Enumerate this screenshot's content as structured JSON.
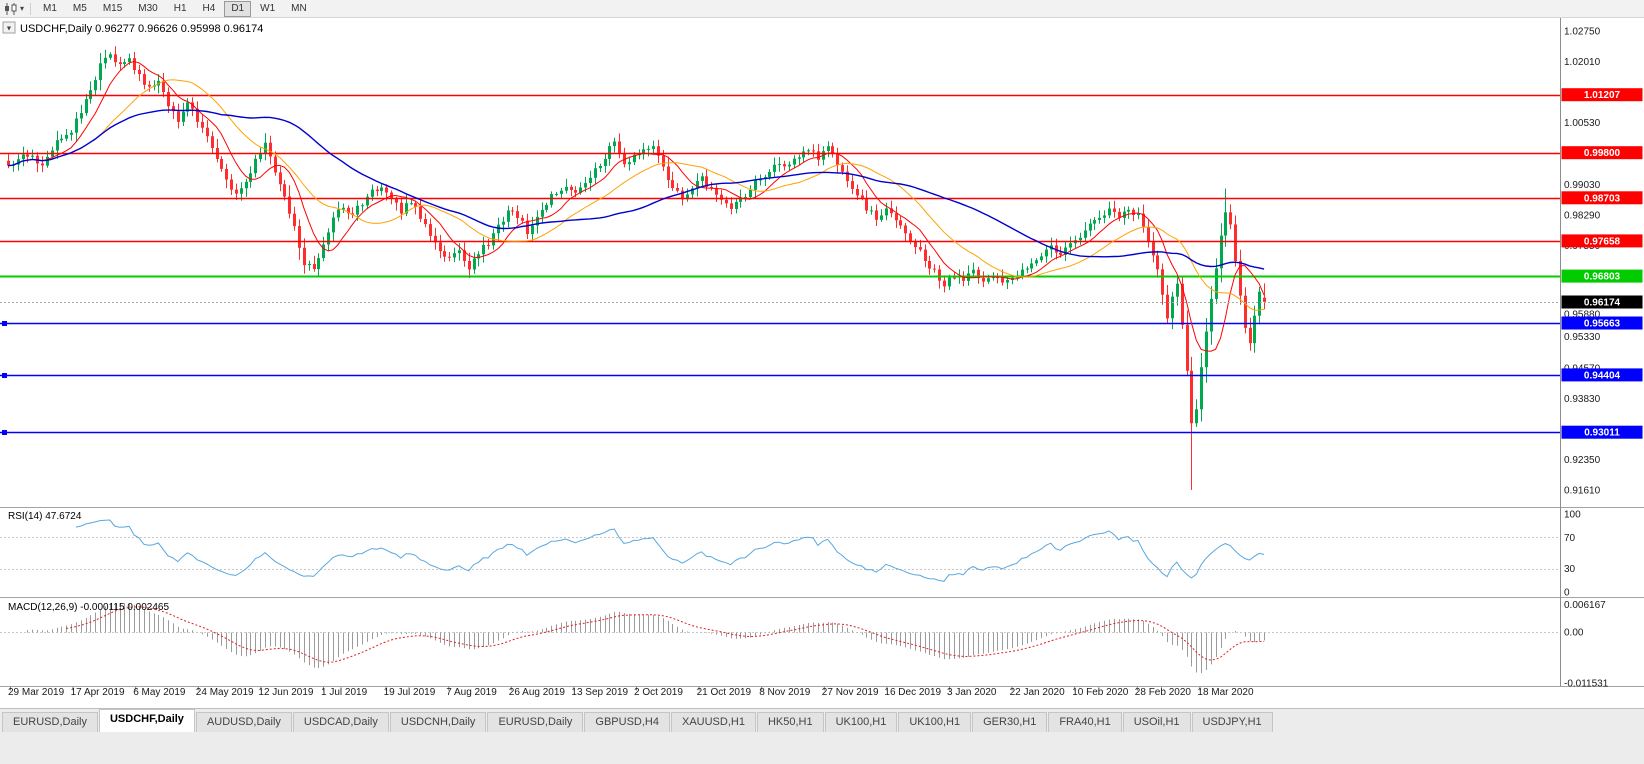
{
  "toolbar": {
    "timeframes": [
      "M1",
      "M5",
      "M15",
      "M30",
      "H1",
      "H4",
      "D1",
      "W1",
      "MN"
    ],
    "active_timeframe": "D1",
    "chart_icon": "candlestick-chart-icon"
  },
  "chart": {
    "header": {
      "symbol": "USDCHF,Daily",
      "open": "0.96277",
      "high": "0.96626",
      "low": "0.95998",
      "close": "0.96174"
    },
    "date_labels": [
      "29 Mar 2019",
      "17 Apr 2019",
      "6 May 2019",
      "24 May 2019",
      "12 Jun 2019",
      "1 Jul 2019",
      "19 Jul 2019",
      "7 Aug 2019",
      "26 Aug 2019",
      "13 Sep 2019",
      "2 Oct 2019",
      "21 Oct 2019",
      "8 Nov 2019",
      "27 Nov 2019",
      "16 Dec 2019",
      "3 Jan 2020",
      "22 Jan 2020",
      "10 Feb 2020",
      "28 Feb 2020",
      "18 Mar 2020"
    ]
  },
  "rsi_panel": {
    "label": "RSI(14)",
    "value": "47.6724",
    "axis_ticks": [
      100,
      70,
      30,
      0
    ],
    "level_lines": [
      70,
      30
    ],
    "line_color": "#58a7e0"
  },
  "macd_panel": {
    "label": "MACD(12,26,9)",
    "main_value": "-0.000115",
    "signal_value": "0.002465",
    "axis_ticks": [
      {
        "label": "0.006167",
        "value": 0.006167
      },
      {
        "label": "0.00",
        "value": 0
      },
      {
        "label": "-0.011531",
        "value": -0.011531
      }
    ],
    "histogram_color": "#9b9b9b",
    "signal_color": "#e02020"
  },
  "tabs": {
    "active_index": 1,
    "list": [
      "EURUSD,Daily",
      "USDCHF,Daily",
      "AUDUSD,Daily",
      "USDCAD,Daily",
      "USDCNH,Daily",
      "EURUSD,Daily",
      "GBPUSD,H4",
      "XAUUSD,H1",
      "HK50,H1",
      "UK100,H1",
      "UK100,H1",
      "GER30,H1",
      "FRA40,H1",
      "USOil,H1",
      "USDJPY,H1"
    ]
  },
  "chart_data": {
    "type": "candlestick",
    "symbol": "USDCHF",
    "timeframe": "Daily",
    "candle_count": 260,
    "colors": {
      "up": "#00a94f",
      "down": "#fe2e2e"
    },
    "price_range": {
      "max": 1.0307,
      "min": 0.9122
    },
    "price_axis_ticks": [
      1.0275,
      1.0201,
      1.0053,
      0.9903,
      0.9829,
      0.9755,
      0.9588,
      0.9533,
      0.9457,
      0.9383,
      0.9235,
      0.9161
    ],
    "horizontal_lines": [
      {
        "price": 1.01207,
        "color": "#ff0000",
        "width": 1.5,
        "badge": "1.01207"
      },
      {
        "price": 0.998,
        "color": "#ff0000",
        "width": 1.5,
        "badge": "0.99800"
      },
      {
        "price": 0.98703,
        "color": "#ff0000",
        "width": 1.5,
        "badge": "0.98703"
      },
      {
        "price": 0.97658,
        "color": "#ff0000",
        "width": 1.5,
        "badge": "0.97658"
      },
      {
        "price": 0.96803,
        "color": "#00cc00",
        "width": 2,
        "badge": "0.96803"
      },
      {
        "price": 0.95663,
        "color": "#0000ff",
        "width": 1.5,
        "badge": "0.95663",
        "marker": true
      },
      {
        "price": 0.94404,
        "color": "#0000ff",
        "width": 1.5,
        "badge": "0.94404",
        "marker": true
      },
      {
        "price": 0.93011,
        "color": "#0000ff",
        "width": 1.5,
        "badge": "0.93011",
        "marker": true
      }
    ],
    "current_price": {
      "value": 0.96174,
      "badge": "0.96174",
      "color": "#000000"
    },
    "moving_averages": [
      {
        "type": "SMA",
        "period": 8,
        "color": "#ff0000",
        "width": 1
      },
      {
        "type": "SMA",
        "period": 20,
        "color": "#ffa200",
        "width": 1
      },
      {
        "type": "SMA",
        "period": 45,
        "color": "#0000d0",
        "width": 1.4
      }
    ],
    "last_candle": {
      "open": 0.96277,
      "high": 0.96626,
      "low": 0.95998,
      "close": 0.96174
    },
    "wick_overrides": [
      {
        "i": 244,
        "l": 0.9161
      },
      {
        "i": 251,
        "h": 0.9893
      }
    ],
    "close_waypoints": [
      [
        0,
        0.9945
      ],
      [
        4,
        0.9975
      ],
      [
        7,
        0.9952
      ],
      [
        10,
        1.0008
      ],
      [
        13,
        1.003
      ],
      [
        15,
        1.008
      ],
      [
        17,
        1.0135
      ],
      [
        19,
        1.019
      ],
      [
        21,
        1.0218
      ],
      [
        23,
        1.019
      ],
      [
        25,
        1.021
      ],
      [
        27,
        1.0165
      ],
      [
        29,
        1.014
      ],
      [
        31,
        1.0152
      ],
      [
        33,
        1.0098
      ],
      [
        35,
        1.006
      ],
      [
        37,
        1.0108
      ],
      [
        39,
        1.005
      ],
      [
        41,
        1.0018
      ],
      [
        43,
        0.9962
      ],
      [
        45,
        0.992
      ],
      [
        47,
        0.9875
      ],
      [
        49,
        0.9905
      ],
      [
        51,
        0.9958
      ],
      [
        53,
        1.0002
      ],
      [
        55,
        0.993
      ],
      [
        57,
        0.9875
      ],
      [
        59,
        0.9795
      ],
      [
        61,
        0.9715
      ],
      [
        63,
        0.969
      ],
      [
        65,
        0.9758
      ],
      [
        67,
        0.982
      ],
      [
        69,
        0.9852
      ],
      [
        71,
        0.9828
      ],
      [
        73,
        0.986
      ],
      [
        75,
        0.9888
      ],
      [
        77,
        0.9898
      ],
      [
        79,
        0.9868
      ],
      [
        81,
        0.9838
      ],
      [
        83,
        0.9862
      ],
      [
        85,
        0.982
      ],
      [
        87,
        0.9778
      ],
      [
        89,
        0.9738
      ],
      [
        91,
        0.9718
      ],
      [
        93,
        0.9745
      ],
      [
        95,
        0.9698
      ],
      [
        97,
        0.9735
      ],
      [
        99,
        0.9762
      ],
      [
        101,
        0.98
      ],
      [
        103,
        0.9838
      ],
      [
        105,
        0.9828
      ],
      [
        107,
        0.979
      ],
      [
        109,
        0.9825
      ],
      [
        111,
        0.9858
      ],
      [
        113,
        0.9885
      ],
      [
        115,
        0.9905
      ],
      [
        117,
        0.9882
      ],
      [
        119,
        0.9908
      ],
      [
        121,
        0.9938
      ],
      [
        123,
        0.9968
      ],
      [
        125,
        1.0008
      ],
      [
        127,
        0.9948
      ],
      [
        129,
        0.9975
      ],
      [
        131,
        0.9988
      ],
      [
        133,
        0.9992
      ],
      [
        135,
        0.994
      ],
      [
        137,
        0.99
      ],
      [
        139,
        0.9865
      ],
      [
        141,
        0.989
      ],
      [
        143,
        0.9918
      ],
      [
        145,
        0.9888
      ],
      [
        147,
        0.986
      ],
      [
        149,
        0.984
      ],
      [
        151,
        0.9868
      ],
      [
        153,
        0.9892
      ],
      [
        155,
        0.9918
      ],
      [
        157,
        0.9938
      ],
      [
        159,
        0.996
      ],
      [
        161,
        0.9945
      ],
      [
        163,
        0.9972
      ],
      [
        165,
        0.9992
      ],
      [
        167,
        0.9965
      ],
      [
        169,
        0.999
      ],
      [
        171,
        0.995
      ],
      [
        173,
        0.9915
      ],
      [
        175,
        0.988
      ],
      [
        177,
        0.9845
      ],
      [
        179,
        0.982
      ],
      [
        181,
        0.9842
      ],
      [
        183,
        0.9812
      ],
      [
        185,
        0.9788
      ],
      [
        187,
        0.9758
      ],
      [
        189,
        0.9722
      ],
      [
        191,
        0.969
      ],
      [
        193,
        0.9658
      ],
      [
        195,
        0.9682
      ],
      [
        197,
        0.9668
      ],
      [
        199,
        0.9692
      ],
      [
        201,
        0.9665
      ],
      [
        203,
        0.968
      ],
      [
        205,
        0.9662
      ],
      [
        207,
        0.9672
      ],
      [
        209,
        0.9695
      ],
      [
        211,
        0.9708
      ],
      [
        213,
        0.9732
      ],
      [
        215,
        0.9755
      ],
      [
        217,
        0.973
      ],
      [
        219,
        0.976
      ],
      [
        221,
        0.9775
      ],
      [
        223,
        0.98
      ],
      [
        225,
        0.9822
      ],
      [
        227,
        0.9845
      ],
      [
        229,
        0.9818
      ],
      [
        231,
        0.9846
      ],
      [
        233,
        0.9825
      ],
      [
        235,
        0.9762
      ],
      [
        237,
        0.97
      ],
      [
        238,
        0.964
      ],
      [
        239,
        0.9585
      ],
      [
        240,
        0.9625
      ],
      [
        241,
        0.9655
      ],
      [
        242,
        0.956
      ],
      [
        243,
        0.9455
      ],
      [
        244,
        0.933
      ],
      [
        245,
        0.9362
      ],
      [
        246,
        0.9455
      ],
      [
        247,
        0.9552
      ],
      [
        248,
        0.9622
      ],
      [
        249,
        0.97
      ],
      [
        250,
        0.9782
      ],
      [
        251,
        0.984
      ],
      [
        252,
        0.9798
      ],
      [
        253,
        0.9718
      ],
      [
        254,
        0.964
      ],
      [
        255,
        0.9552
      ],
      [
        256,
        0.952
      ],
      [
        257,
        0.958
      ],
      [
        258,
        0.964
      ],
      [
        259,
        0.96174
      ]
    ],
    "indicators": [
      {
        "name": "RSI",
        "period": 14,
        "displayed_value": 47.6724
      },
      {
        "name": "MACD",
        "fast": 12,
        "slow": 26,
        "signal": 9,
        "displayed_values": [
          -0.000115,
          0.002465
        ]
      }
    ]
  }
}
